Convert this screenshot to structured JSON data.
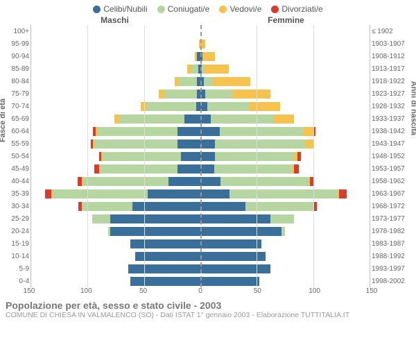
{
  "legend": [
    {
      "label": "Celibi/Nubili",
      "color": "#3a6f9a"
    },
    {
      "label": "Coniugati/e",
      "color": "#b5d6a0"
    },
    {
      "label": "Vedovi/e",
      "color": "#f6c34e"
    },
    {
      "label": "Divorziati/e",
      "color": "#d73c2c"
    }
  ],
  "header_left": "Maschi",
  "header_right": "Femmine",
  "axis_left_title": "Fasce di età",
  "axis_right_title": "Anni di nascita",
  "max_value": 150,
  "xticks": [
    150,
    100,
    50,
    0,
    50,
    100,
    150
  ],
  "grid_color": "#ddd",
  "background": "#ffffff",
  "age_bands": [
    {
      "age": "100+",
      "year": "≤ 1902",
      "m": [
        0,
        0,
        0,
        0
      ],
      "f": [
        0,
        0,
        0,
        0
      ]
    },
    {
      "age": "95-99",
      "year": "1903-1907",
      "m": [
        0,
        0,
        1,
        0
      ],
      "f": [
        0,
        0,
        4,
        0
      ]
    },
    {
      "age": "90-94",
      "year": "1908-1912",
      "m": [
        3,
        0,
        2,
        0
      ],
      "f": [
        2,
        0,
        11,
        0
      ]
    },
    {
      "age": "85-89",
      "year": "1913-1917",
      "m": [
        2,
        6,
        4,
        0
      ],
      "f": [
        1,
        2,
        22,
        0
      ]
    },
    {
      "age": "80-84",
      "year": "1918-1922",
      "m": [
        3,
        16,
        4,
        0
      ],
      "f": [
        3,
        8,
        33,
        0
      ]
    },
    {
      "age": "75-79",
      "year": "1923-1927",
      "m": [
        3,
        29,
        5,
        0
      ],
      "f": [
        4,
        24,
        34,
        0
      ]
    },
    {
      "age": "70-74",
      "year": "1928-1932",
      "m": [
        4,
        44,
        5,
        0
      ],
      "f": [
        6,
        37,
        28,
        0
      ]
    },
    {
      "age": "65-69",
      "year": "1933-1937",
      "m": [
        14,
        58,
        4,
        0
      ],
      "f": [
        9,
        56,
        18,
        0
      ]
    },
    {
      "age": "60-64",
      "year": "1938-1942",
      "m": [
        20,
        71,
        2,
        2
      ],
      "f": [
        17,
        74,
        10,
        1
      ]
    },
    {
      "age": "55-59",
      "year": "1943-1947",
      "m": [
        20,
        74,
        1,
        2
      ],
      "f": [
        13,
        80,
        7,
        1
      ]
    },
    {
      "age": "50-54",
      "year": "1948-1952",
      "m": [
        17,
        70,
        1,
        2
      ],
      "f": [
        13,
        70,
        3,
        3
      ]
    },
    {
      "age": "45-49",
      "year": "1953-1957",
      "m": [
        20,
        69,
        1,
        4
      ],
      "f": [
        12,
        69,
        2,
        4
      ]
    },
    {
      "age": "40-44",
      "year": "1958-1962",
      "m": [
        28,
        76,
        1,
        4
      ],
      "f": [
        18,
        78,
        1,
        4
      ]
    },
    {
      "age": "35-39",
      "year": "1963-1967",
      "m": [
        47,
        84,
        1,
        6
      ],
      "f": [
        26,
        96,
        1,
        7
      ]
    },
    {
      "age": "30-34",
      "year": "1968-1972",
      "m": [
        60,
        45,
        0,
        3
      ],
      "f": [
        40,
        60,
        0,
        3
      ]
    },
    {
      "age": "25-29",
      "year": "1973-1977",
      "m": [
        80,
        16,
        0,
        0
      ],
      "f": [
        62,
        21,
        0,
        0
      ]
    },
    {
      "age": "20-24",
      "year": "1978-1982",
      "m": [
        80,
        2,
        0,
        0
      ],
      "f": [
        72,
        3,
        0,
        0
      ]
    },
    {
      "age": "15-19",
      "year": "1983-1987",
      "m": [
        62,
        0,
        0,
        0
      ],
      "f": [
        54,
        0,
        0,
        0
      ]
    },
    {
      "age": "10-14",
      "year": "1988-1992",
      "m": [
        58,
        0,
        0,
        0
      ],
      "f": [
        58,
        0,
        0,
        0
      ]
    },
    {
      "age": "5-9",
      "year": "1993-1997",
      "m": [
        64,
        0,
        0,
        0
      ],
      "f": [
        62,
        0,
        0,
        0
      ]
    },
    {
      "age": "0-4",
      "year": "1998-2002",
      "m": [
        62,
        0,
        0,
        0
      ],
      "f": [
        52,
        0,
        0,
        0
      ]
    }
  ],
  "footer_title": "Popolazione per età, sesso e stato civile - 2003",
  "footer_sub": "COMUNE DI CHIESA IN VALMALENCO (SO) - Dati ISTAT 1° gennaio 2003 - Elaborazione TUTTITALIA.IT"
}
